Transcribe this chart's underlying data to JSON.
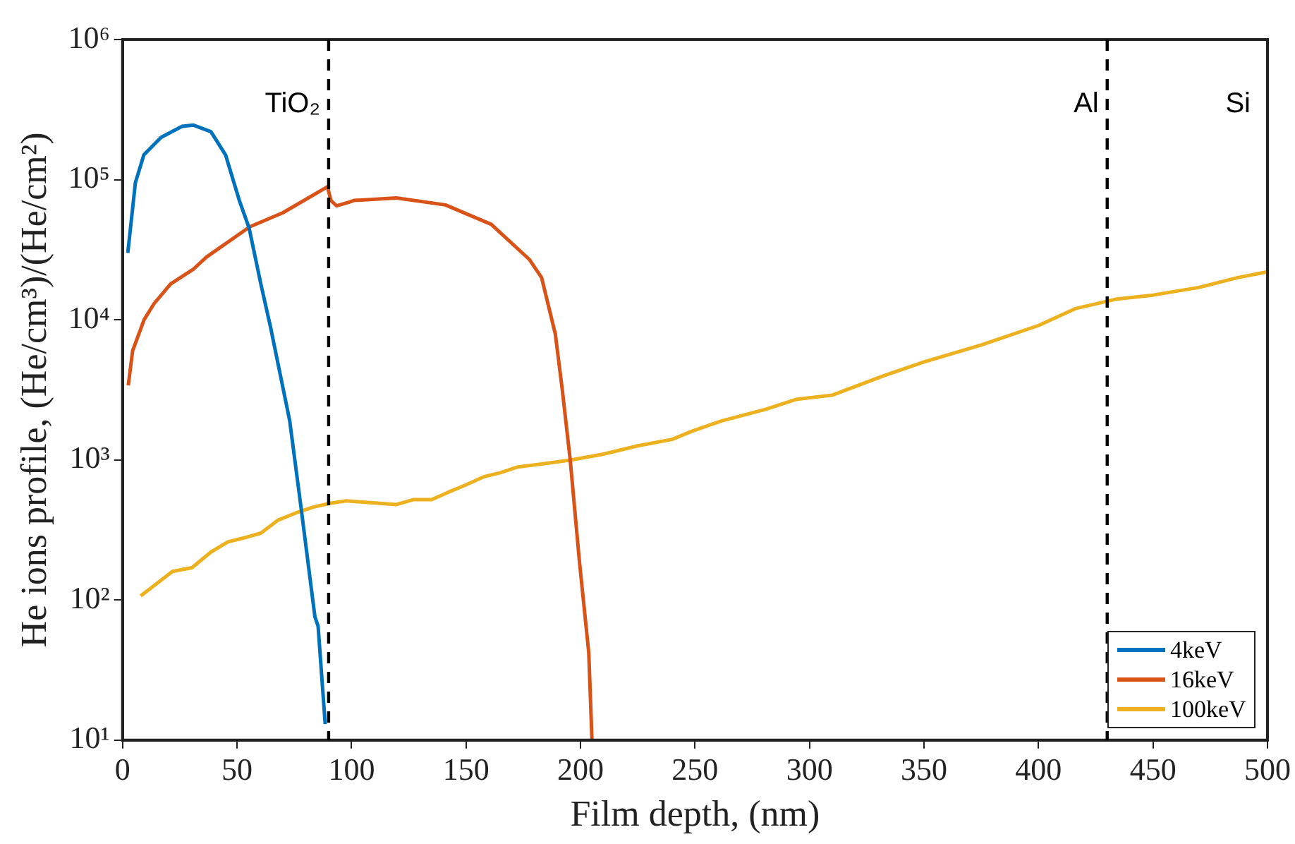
{
  "chart_data": {
    "type": "line",
    "xlabel": "Film depth, (nm)",
    "ylabel": "He ions profile, (He/cm³)/(He/cm²)",
    "xlim": [
      0,
      500
    ],
    "xticks": [
      0,
      50,
      100,
      150,
      200,
      250,
      300,
      350,
      400,
      450,
      500
    ],
    "ylim": [
      10,
      1000000
    ],
    "yticks": [
      {
        "value": 10,
        "label": "10¹"
      },
      {
        "value": 100,
        "label": "10²"
      },
      {
        "value": 1000,
        "label": "10³"
      },
      {
        "value": 10000,
        "label": "10⁴"
      },
      {
        "value": 100000,
        "label": "10⁵"
      },
      {
        "value": 1000000,
        "label": "10⁶"
      }
    ],
    "log": "y",
    "grid": false,
    "legend": "bottom right",
    "marker": "none",
    "line_style": "solid",
    "ref_lines": [
      {
        "axis": "x",
        "value": 90,
        "label": "TiO₂",
        "line_style": "dashed",
        "color": "#000000"
      },
      {
        "axis": "x",
        "value": 430,
        "label": "Al",
        "line_style": "dashed",
        "color": "#000000"
      }
    ],
    "annotations": [
      "Si"
    ],
    "series": [
      {
        "name": "4keV",
        "color": "#0072bd",
        "x": [
          2.3,
          5.6,
          9.3,
          16.8,
          26,
          31,
          38.6,
          45,
          51,
          55.3,
          60.4,
          64.6,
          73,
          78,
          84,
          85.4,
          88.5
        ],
        "values": [
          30000,
          95000,
          150000,
          200000,
          240000,
          245000,
          220000,
          150000,
          71000,
          45000,
          18000,
          8900,
          1900,
          450,
          76,
          65,
          13
        ]
      },
      {
        "name": "16keV",
        "color": "#d95319",
        "x": [
          2.5,
          4.4,
          9.4,
          13.7,
          21,
          31,
          36.6,
          55.5,
          70,
          89.5,
          91,
          93.5,
          98.8,
          101,
          119.6,
          141,
          161,
          177.6,
          183,
          189,
          192,
          195.5,
          199.5,
          203.6,
          205
        ],
        "values": [
          3400,
          6000,
          10000,
          13000,
          18000,
          23000,
          28000,
          46000,
          58000,
          89000,
          71000,
          65000,
          69000,
          71000,
          74000,
          66000,
          48000,
          27000,
          20000,
          7900,
          3200,
          1000,
          190,
          42,
          10
        ]
      },
      {
        "name": "100keV",
        "color": "#edb120",
        "x": [
          7.9,
          21.8,
          30.3,
          38.6,
          46,
          54,
          60.4,
          67.7,
          76,
          83.3,
          90.5,
          97.7,
          119.6,
          126.9,
          135,
          142.5,
          149.7,
          158,
          165,
          172.6,
          182,
          196,
          210,
          225,
          240,
          248.6,
          261.7,
          281,
          294,
          310,
          332.7,
          350,
          375,
          400,
          416,
          433.6,
          450,
          470,
          487,
          500
        ],
        "values": [
          107,
          160,
          170,
          220,
          260,
          280,
          300,
          370,
          420,
          460,
          490,
          510,
          480,
          520,
          520,
          590,
          660,
          760,
          810,
          890,
          930,
          1000,
          1100,
          1260,
          1400,
          1600,
          1900,
          2300,
          2700,
          2900,
          4000,
          5000,
          6600,
          9100,
          12000,
          14000,
          15000,
          17000,
          20000,
          22000
        ]
      }
    ]
  }
}
